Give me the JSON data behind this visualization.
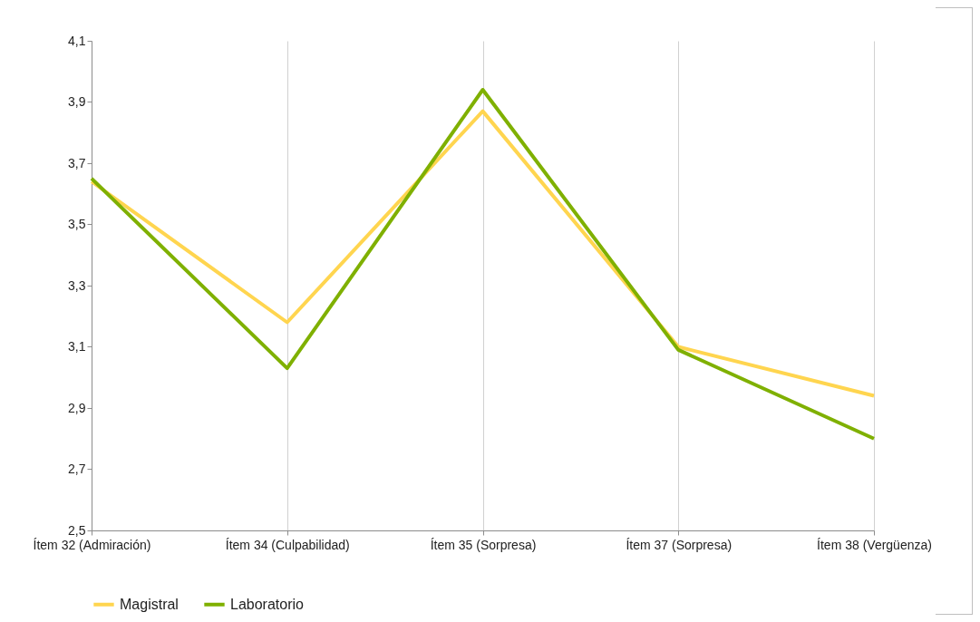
{
  "chart_data": {
    "type": "line",
    "categories": [
      "Ítem 32 (Admiración)",
      "Ítem 34 (Culpabilidad)",
      "Ítem 35 (Sorpresa)",
      "Ítem 37 (Sorpresa)",
      "Ítem 38 (Vergüenza)"
    ],
    "series": [
      {
        "name": "Magistral",
        "color": "#ffd54f",
        "values": [
          3.64,
          3.18,
          3.87,
          3.1,
          2.94
        ]
      },
      {
        "name": "Laboratorio",
        "color": "#7fb000",
        "values": [
          3.65,
          3.03,
          3.94,
          3.09,
          2.8
        ]
      }
    ],
    "ylim": [
      2.5,
      4.1
    ],
    "yticks": [
      {
        "value": 2.5,
        "label": "2,5"
      },
      {
        "value": 2.7,
        "label": "2,7"
      },
      {
        "value": 2.9,
        "label": "2,9"
      },
      {
        "value": 3.1,
        "label": "3,1"
      },
      {
        "value": 3.3,
        "label": "3,3"
      },
      {
        "value": 3.5,
        "label": "3,5"
      },
      {
        "value": 3.7,
        "label": "3,7"
      },
      {
        "value": 3.9,
        "label": "3,9"
      },
      {
        "value": 4.1,
        "label": "4,1"
      }
    ],
    "grid": "x",
    "legend": "bottom",
    "marker": "none",
    "line_style": "solid"
  }
}
